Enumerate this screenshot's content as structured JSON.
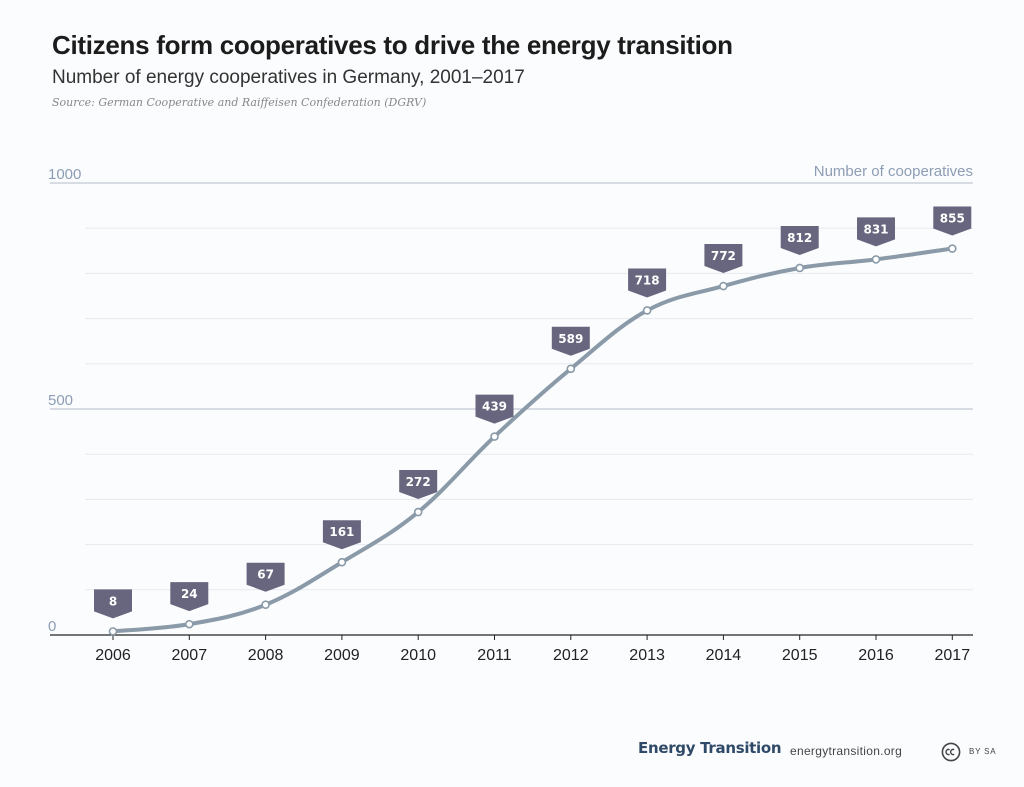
{
  "header": {
    "title": "Citizens form cooperatives to drive the energy transition",
    "subtitle": "Number of energy cooperatives in Germany, 2001–2017",
    "source": "Source: German Cooperative and Raiffeisen Confederation (DGRV)"
  },
  "footer": {
    "brand": "Energy Transition",
    "url": "energytransition.org",
    "license": "BY SA",
    "license_icon": "creative-commons-icon"
  },
  "chart_data": {
    "type": "line",
    "title": "Citizens form cooperatives to drive the energy transition",
    "subtitle": "Number of energy cooperatives in Germany, 2001–2017",
    "ylabel": "Number of cooperatives",
    "xlabel": "",
    "x": [
      "2006",
      "2007",
      "2008",
      "2009",
      "2010",
      "2011",
      "2012",
      "2013",
      "2014",
      "2015",
      "2016",
      "2017"
    ],
    "series": [
      {
        "values": [
          8,
          24,
          67,
          161,
          272,
          439,
          589,
          718,
          772,
          812,
          831,
          855
        ]
      }
    ],
    "data_labels": [
      "8",
      "24",
      "67",
      "161",
      "272",
      "439",
      "589",
      "718",
      "772",
      "812",
      "831",
      "855"
    ],
    "ylim": [
      0,
      1000
    ],
    "y_ticks": [
      0,
      500,
      1000
    ],
    "y_tick_labels": [
      "0",
      "500",
      "1000"
    ],
    "grid": true,
    "colors": {
      "line": "#8a9aa8",
      "label_box": "#67667e",
      "label_text": "#ffffff",
      "axis_text": "#8d9db5",
      "major_grid": "#b3bccb",
      "minor_grid": "#e6eaee"
    }
  }
}
